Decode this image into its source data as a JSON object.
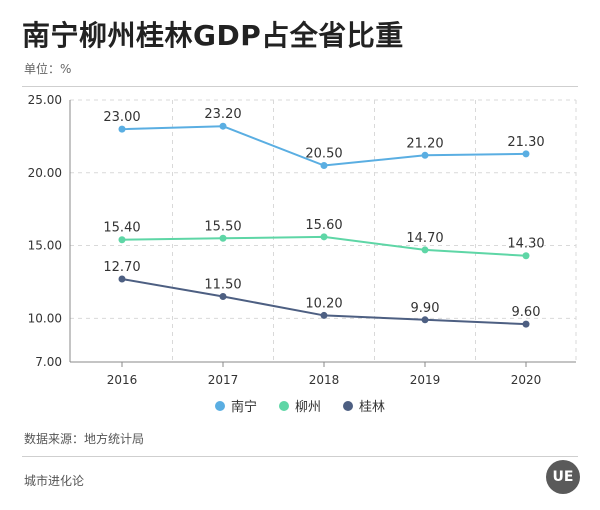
{
  "header": {
    "title": "南宁柳州桂林GDP占全省比重",
    "unit": "单位：%"
  },
  "colors": {
    "nanning": "#5aaee2",
    "liuzhou": "#5ed6a6",
    "guilin": "#4d5f82",
    "grid": "#d9d9d9",
    "axis": "#888888"
  },
  "chart_data": {
    "type": "line",
    "categories": [
      "2016",
      "2017",
      "2018",
      "2019",
      "2020"
    ],
    "yticks": [
      "7.00",
      "10.00",
      "15.00",
      "20.00",
      "25.00"
    ],
    "ylim": [
      7,
      25
    ],
    "grid": true,
    "legend_position": "bottom",
    "series": [
      {
        "name": "南宁",
        "color": "#5aaee2",
        "values": [
          23.0,
          23.2,
          20.5,
          21.2,
          21.3
        ],
        "labels": [
          "23.00",
          "23.20",
          "20.50",
          "21.20",
          "21.30"
        ]
      },
      {
        "name": "柳州",
        "color": "#5ed6a6",
        "values": [
          15.4,
          15.5,
          15.6,
          14.7,
          14.3
        ],
        "labels": [
          "15.40",
          "15.50",
          "15.60",
          "14.70",
          "14.30"
        ]
      },
      {
        "name": "桂林",
        "color": "#4d5f82",
        "values": [
          12.7,
          11.5,
          10.2,
          9.9,
          9.6
        ],
        "labels": [
          "12.70",
          "11.50",
          "10.20",
          "9.90",
          "9.60"
        ]
      }
    ]
  },
  "footer": {
    "source": "数据来源：地方统计局",
    "brand": "城市进化论",
    "logo_text": "UE"
  }
}
